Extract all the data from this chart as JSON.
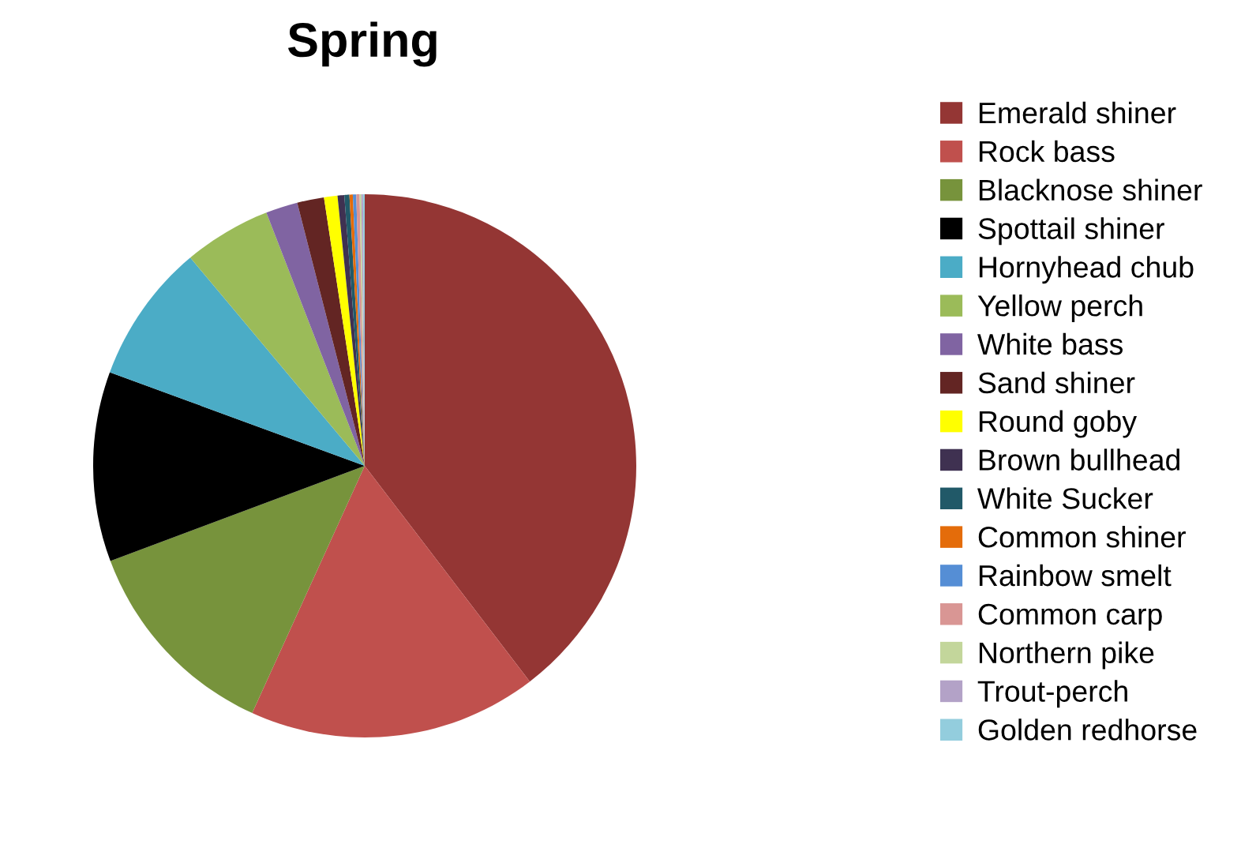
{
  "chart_data": {
    "type": "pie",
    "title": "Spring",
    "categories": [
      "Emerald shiner",
      "Rock bass",
      "Blacknose shiner",
      "Spottail shiner",
      "Hornyhead chub",
      "Yellow perch",
      "White bass",
      "Sand shiner",
      "Round goby",
      "Brown bullhead",
      "White Sucker",
      "Common shiner",
      "Rainbow smelt",
      "Common carp",
      "Northern pike",
      "Trout-perch",
      "Golden redhorse"
    ],
    "values": [
      39.6,
      17.2,
      12.5,
      11.3,
      8.3,
      5.2,
      1.9,
      1.6,
      0.8,
      0.4,
      0.3,
      0.2,
      0.2,
      0.2,
      0.1,
      0.1,
      0.1
    ],
    "colors": [
      "#943634",
      "#c0504d",
      "#77933c",
      "#000000",
      "#4bacc6",
      "#9bbb59",
      "#8064a2",
      "#632523",
      "#ffff00",
      "#3f3151",
      "#215968",
      "#e46c0a",
      "#558ed5",
      "#d99694",
      "#c3d69b",
      "#b3a2c7",
      "#93cddd"
    ],
    "legend": "right"
  }
}
